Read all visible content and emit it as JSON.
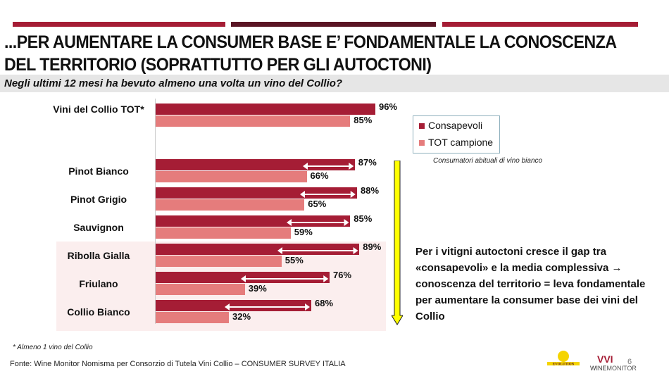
{
  "header": {
    "title": "...PER AUMENTARE LA CONSUMER BASE E’ FONDAMENTALE LA CONOSCENZA DEL TERRITORIO (SOPRATTUTTO PER GLI AUTOCTONI)",
    "subtitle": "Negli ultimi 12 mesi ha bevuto almeno una volta un vino del Collio?",
    "bar_colors": [
      "#a51d35",
      "#5a1524",
      "#a51d35"
    ]
  },
  "chart_data": {
    "type": "bar",
    "orientation": "horizontal",
    "categories": [
      "Vini del Collio TOT*",
      "Pinot Bianco",
      "Pinot Grigio",
      "Sauvignon",
      "Ribolla Gialla",
      "Friulano",
      "Collio Bianco"
    ],
    "series": [
      {
        "name": "Consapevoli",
        "color": "#a51d35",
        "values": [
          96,
          87,
          88,
          85,
          89,
          76,
          68
        ]
      },
      {
        "name": "TOT campione",
        "color": "#e57c7c",
        "values": [
          85,
          66,
          65,
          59,
          55,
          39,
          32
        ]
      }
    ],
    "unit": "%",
    "xlim": [
      0,
      100
    ],
    "legend": "right",
    "grid": false,
    "highlighted_categories": [
      "Ribolla Gialla",
      "Friulano",
      "Collio Bianco"
    ]
  },
  "legend_note": "Consumatori abituali di vino bianco",
  "callout": "Per i vitigni autoctoni cresce il gap tra «consapevoli» e la media complessiva → conoscenza del territorio = leva fondamentale per aumentare la consumer base dei vini del Collio",
  "footer": {
    "note": "* Almeno 1 vino del Collio",
    "source": "Fonte: Wine Monitor Nomisma per Consorzio di Tutela Vini Collio – CONSUMER SURVEY ITALIA",
    "page": "6",
    "logos": [
      "EVOLUTION",
      "WINEMONITOR Nomisma"
    ]
  }
}
